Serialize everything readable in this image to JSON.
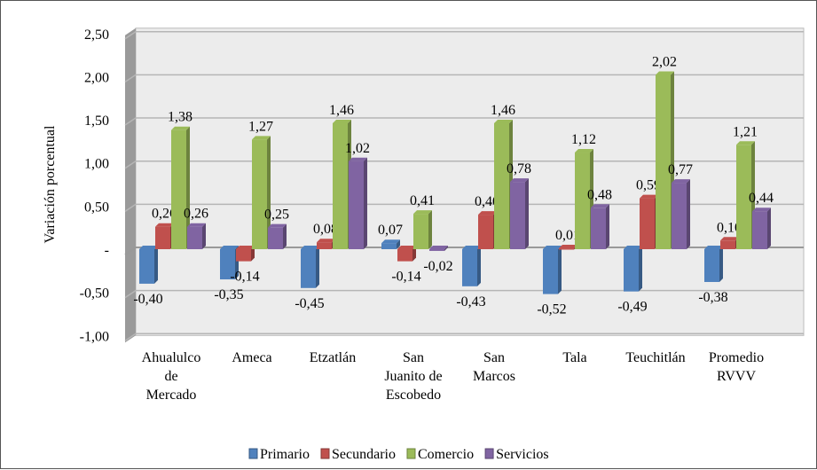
{
  "chart_data": {
    "type": "bar",
    "ylabel": "Variación porcentual",
    "ylim": [
      -1.0,
      2.5
    ],
    "yticks": [
      "-1,00",
      "-0,50",
      "-",
      "0,50",
      "1,00",
      "1,50",
      "2,00",
      "2,50"
    ],
    "ytick_values": [
      -1,
      -0.5,
      0,
      0.5,
      1,
      1.5,
      2,
      2.5
    ],
    "grid": true,
    "legend": "bottom",
    "categories": [
      [
        "Ahualulco",
        "de",
        "Mercado"
      ],
      [
        "Ameca"
      ],
      [
        "Etzatlán"
      ],
      [
        "San",
        "Juanito de",
        "Escobedo"
      ],
      [
        "San",
        "Marcos"
      ],
      [
        "Tala"
      ],
      [
        "Teuchitlán"
      ],
      [
        "Promedio",
        "RVVV"
      ]
    ],
    "series": [
      {
        "name": "Primario",
        "color": "#4F81BD",
        "values": [
          -0.4,
          -0.35,
          -0.45,
          0.07,
          -0.43,
          -0.52,
          -0.49,
          -0.38
        ],
        "labels": [
          "-0,40",
          "-0,35",
          "-0,45",
          "0,07",
          "-0,43",
          "-0,52",
          "-0,49",
          "-0,38"
        ]
      },
      {
        "name": "Secundario",
        "color": "#C0504D",
        "values": [
          0.26,
          -0.14,
          0.08,
          -0.14,
          0.4,
          0.01,
          0.59,
          0.1
        ],
        "labels": [
          "0,26",
          "-0,14",
          "0,08",
          "-0,14",
          "0,40",
          "0,01",
          "0,59",
          "0,10"
        ]
      },
      {
        "name": "Comercio",
        "color": "#9BBB59",
        "values": [
          1.38,
          1.27,
          1.46,
          0.41,
          1.46,
          1.12,
          2.02,
          1.21
        ],
        "labels": [
          "1,38",
          "1,27",
          "1,46",
          "0,41",
          "1,46",
          "1,12",
          "2,02",
          "1,21"
        ]
      },
      {
        "name": "Servicios",
        "color": "#8064A2",
        "values": [
          0.26,
          0.25,
          1.02,
          -0.02,
          0.78,
          0.48,
          0.77,
          0.44
        ],
        "labels": [
          "0,26",
          "0,25",
          "1,02",
          "-0,02",
          "0,78",
          "0,48",
          "0,77",
          "0,44"
        ]
      }
    ]
  }
}
